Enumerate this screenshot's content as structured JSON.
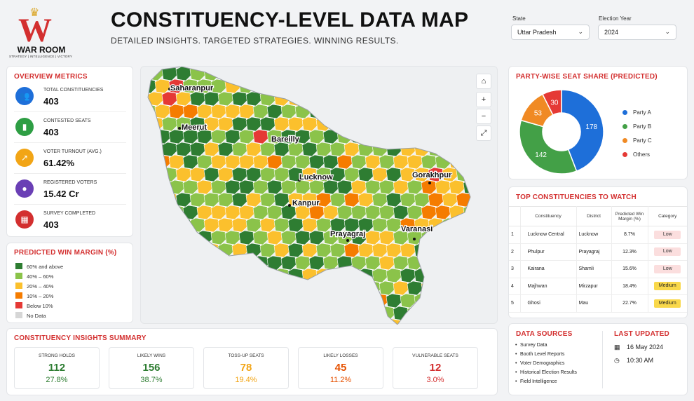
{
  "brand": {
    "name": "WAR ROOM",
    "tagline": "STRATEGY | INTELLIGENCE | VICTORY",
    "color": "#d32f2f"
  },
  "header": {
    "title": "CONSTITUENCY-LEVEL DATA MAP",
    "subtitle": "DETAILED INSIGHTS. TARGETED STRATEGIES. WINNING RESULTS."
  },
  "filters": {
    "state": {
      "label": "State",
      "value": "Uttar Pradesh"
    },
    "year": {
      "label": "Election Year",
      "value": "2024"
    }
  },
  "overview": {
    "title": "OVERVIEW METRICS",
    "metrics": [
      {
        "label": "TOTAL CONSTITUENCIES",
        "value": "403",
        "icon": "people-icon",
        "color": "#1e6fd9"
      },
      {
        "label": "CONTESTED SEATS",
        "value": "403",
        "icon": "bar-chart-icon",
        "color": "#2e9e44"
      },
      {
        "label": "VOTER TURNOUT (AVG.)",
        "value": "61.42%",
        "icon": "trend-icon",
        "color": "#f2a516"
      },
      {
        "label": "REGISTERED VOTERS",
        "value": "15.42 Cr",
        "icon": "group-icon",
        "color": "#6a3fb5"
      },
      {
        "label": "SURVEY COMPLETED",
        "value": "403",
        "icon": "calendar-icon",
        "color": "#d32f2f"
      }
    ]
  },
  "legend": {
    "title": "PREDICTED WIN MARGIN (%)",
    "items": [
      {
        "label": "60% and above",
        "color": "#2e7d32"
      },
      {
        "label": "40% – 60%",
        "color": "#8bc34a"
      },
      {
        "label": "20% – 40%",
        "color": "#fbc02d"
      },
      {
        "label": "10% – 20%",
        "color": "#f57c00"
      },
      {
        "label": "Below 10%",
        "color": "#e53935"
      },
      {
        "label": "No Data",
        "color": "#d6d6d6"
      }
    ]
  },
  "map": {
    "cities": [
      "Saharanpur",
      "Meerut",
      "Bareilly",
      "Lucknow",
      "Kanpur",
      "Gorakhpur",
      "Prayagraj",
      "Varanasi"
    ],
    "controls": [
      "home-icon",
      "zoom-in-icon",
      "zoom-out-icon",
      "fullscreen-icon"
    ]
  },
  "pie": {
    "title": "PARTY-WISE SEAT SHARE (PREDICTED)",
    "slices": [
      {
        "name": "Party A",
        "value": 178,
        "color": "#1e6fd9"
      },
      {
        "name": "Party B",
        "value": 142,
        "color": "#43a047"
      },
      {
        "name": "Party C",
        "value": 53,
        "color": "#f08a24"
      },
      {
        "name": "Others",
        "value": 30,
        "color": "#e53935"
      }
    ]
  },
  "top": {
    "title": "TOP CONSTITUENCIES TO WATCH",
    "headers": [
      "",
      "Constituency",
      "District",
      "Predicted Win Margin (%)",
      "Category"
    ],
    "rows": [
      {
        "n": "1",
        "name": "Lucknow Central",
        "district": "Lucknow",
        "margin": "8.7%",
        "category": "Low"
      },
      {
        "n": "2",
        "name": "Phulpur",
        "district": "Prayagraj",
        "margin": "12.3%",
        "category": "Low"
      },
      {
        "n": "3",
        "name": "Kairana",
        "district": "Shamli",
        "margin": "15.6%",
        "category": "Low"
      },
      {
        "n": "4",
        "name": "Majhwan",
        "district": "Mirzapur",
        "margin": "18.4%",
        "category": "Medium"
      },
      {
        "n": "5",
        "name": "Ghosi",
        "district": "Mau",
        "margin": "22.7%",
        "category": "Medium"
      }
    ]
  },
  "insights": {
    "title": "CONSTITUENCY INSIGHTS SUMMARY",
    "cards": [
      {
        "label": "STRONG HOLDS",
        "value": "112",
        "pct": "27.8%",
        "color": "#2e7d32"
      },
      {
        "label": "LIKELY WINS",
        "value": "156",
        "pct": "38.7%",
        "color": "#2e7d32"
      },
      {
        "label": "TOSS-UP SEATS",
        "value": "78",
        "pct": "19.4%",
        "color": "#f2a516"
      },
      {
        "label": "LIKELY LOSSES",
        "value": "45",
        "pct": "11.2%",
        "color": "#e65100"
      },
      {
        "label": "VULNERABLE SEATS",
        "value": "12",
        "pct": "3.0%",
        "color": "#d32f2f"
      }
    ]
  },
  "sources": {
    "title": "DATA SOURCES",
    "items": [
      "Survey Data",
      "Booth Level Reports",
      "Voter Demographics",
      "Historical Election Results",
      "Field Intelligence"
    ]
  },
  "updated": {
    "title": "LAST UPDATED",
    "date": "16 May 2024",
    "time": "10:30 AM"
  }
}
